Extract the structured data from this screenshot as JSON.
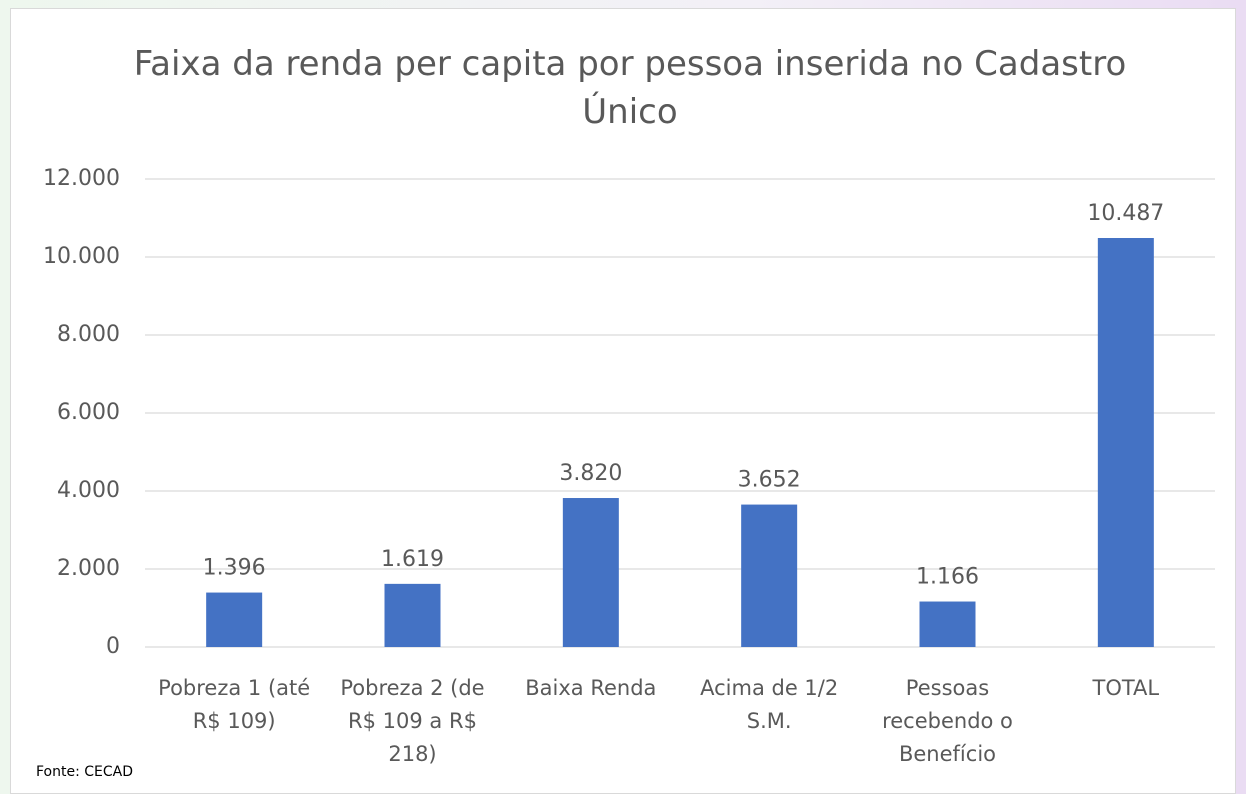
{
  "chart_data": {
    "type": "bar",
    "title": "Faixa da renda per capita por pessoa inserida no Cadastro Único",
    "categories": [
      "Pobreza 1 (até R$ 109)",
      "Pobreza 2 (de R$ 109 a R$ 218)",
      "Baixa Renda",
      "Acima de 1/2 S.M.",
      "Pessoas recebendo o Benefício",
      "TOTAL"
    ],
    "values": [
      1396,
      1619,
      3820,
      3652,
      1166,
      10487
    ],
    "value_labels": [
      "1.396",
      "1.619",
      "3.820",
      "3.652",
      "1.166",
      "10.487"
    ],
    "color": "#4472c4",
    "ylim": [
      0,
      12000
    ],
    "yticks": [
      0,
      {
        "value": 2000,
        "label": "2.000"
      },
      {
        "value": 4000,
        "label": "4.000"
      },
      {
        "value": 6000,
        "label": "6.000"
      },
      {
        "value": 8000,
        "label": "8.000"
      },
      {
        "value": 10000,
        "label": "10.000"
      },
      {
        "value": 12000,
        "label": "12.000"
      }
    ],
    "grid": true,
    "source": "Fonte: CECAD"
  }
}
